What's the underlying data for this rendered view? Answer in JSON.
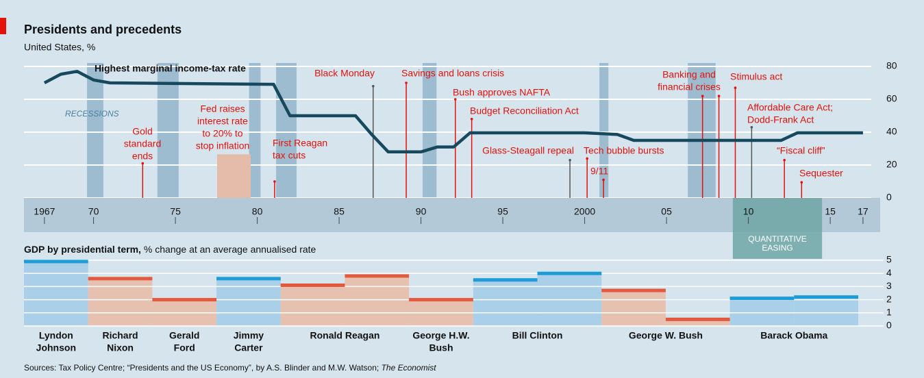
{
  "header": {
    "title": "Presidents and precedents",
    "subtitle": "United States, %"
  },
  "chart_data": [
    {
      "type": "line",
      "series": [
        {
          "name": "Highest marginal income-tax rate",
          "color": "#17495e",
          "x": [
            1967,
            1968,
            1969,
            1970,
            1971,
            1981,
            1982,
            1986,
            1987,
            1988,
            1990,
            1991,
            1992,
            1993,
            2000,
            2001,
            2002,
            2003,
            2012,
            2013,
            2017
          ],
          "values": [
            70,
            75.25,
            77,
            71.75,
            70,
            69.1,
            50,
            50,
            38.5,
            28,
            28,
            31,
            31,
            39.6,
            39.6,
            39.1,
            38.6,
            35,
            35,
            39.6,
            39.6
          ]
        }
      ],
      "xlim": [
        1965.75,
        2018.05
      ],
      "xticks": [
        1967,
        {
          "value": 1970,
          "label": "70"
        },
        {
          "value": 1975,
          "label": "75"
        },
        {
          "value": 1980,
          "label": "80"
        },
        {
          "value": 1985,
          "label": "85"
        },
        {
          "value": 1990,
          "label": "90"
        },
        {
          "value": 1995,
          "label": "95"
        },
        2000,
        {
          "value": 2005,
          "label": "05"
        },
        {
          "value": 2010,
          "label": "10"
        },
        {
          "value": 2015,
          "label": "15"
        },
        {
          "value": 2017,
          "label": "17"
        }
      ],
      "ylim": [
        0,
        80
      ],
      "yticks": [
        0,
        20,
        40,
        60,
        80
      ],
      "grid": true,
      "recessions": {
        "label": "RECESSIONS",
        "color": "#9dbcd0",
        "spans": [
          [
            1969.6,
            1970.6
          ],
          [
            1973.9,
            1975.2
          ],
          [
            1979.5,
            1980.2
          ],
          [
            1981.15,
            1982.4
          ],
          [
            1990.1,
            1990.95
          ],
          [
            2000.9,
            2001.45
          ],
          [
            2006.3,
            2008.0
          ]
        ]
      },
      "quantitative_easing": {
        "lines": [
          "QUANTITATIVE",
          "EASING"
        ],
        "span": [
          2009.05,
          2014.5
        ],
        "color": "#6fa6a6"
      },
      "fed_box": {
        "lines": [
          "Fed raises",
          "interest rate",
          "to 20% to",
          "stop inflation"
        ],
        "span": [
          1977.55,
          1979.6
        ],
        "top": 26.5,
        "color": "#e5bcaa"
      },
      "annotations": [
        {
          "lines": [
            "Gold",
            "standard",
            "ends"
          ],
          "x": [
            1973.0
          ],
          "top": 21,
          "color": "#e3120b"
        },
        {
          "lines": [
            "First Reagan",
            "tax cuts"
          ],
          "x": [
            1981.06
          ],
          "top": 10,
          "color": "#e3120b"
        },
        {
          "lines": [
            "Black Monday"
          ],
          "x": [
            1987.08
          ],
          "top": 68,
          "color": "#555555"
        },
        {
          "lines": [
            "Savings and loans crisis"
          ],
          "x": [
            1989.1
          ],
          "top": 70,
          "color": "#e3120b"
        },
        {
          "lines": [
            "Bush approves NAFTA"
          ],
          "x": [
            1992.1
          ],
          "top": 60,
          "color": "#e3120b"
        },
        {
          "lines": [
            "Budget Reconciliation Act"
          ],
          "x": [
            1993.1
          ],
          "top": 48,
          "color": "#e3120b"
        },
        {
          "lines": [
            "Glass-Steagall repeal"
          ],
          "x": [
            1999.1
          ],
          "top": 23,
          "color": "#555555"
        },
        {
          "lines": [
            "Tech bubble bursts"
          ],
          "x": [
            2000.15
          ],
          "top": 24,
          "color": "#e3120b"
        },
        {
          "lines": [
            "9/11"
          ],
          "x": [
            2001.15
          ],
          "top": 11,
          "color": "#e3120b"
        },
        {
          "lines": [
            "Banking and",
            "financial crises"
          ],
          "x": [
            2007.2,
            2008.2
          ],
          "top": 62,
          "color": "#e3120b"
        },
        {
          "lines": [
            "Stimulus act"
          ],
          "x": [
            2009.2
          ],
          "top": 67,
          "color": "#e3120b"
        },
        {
          "lines": [
            "Affordable Care Act;",
            "Dodd-Frank Act"
          ],
          "x": [
            2010.2
          ],
          "top": 43,
          "color": "#555555"
        },
        {
          "lines": [
            "“Fiscal cliff”"
          ],
          "x": [
            2012.2
          ],
          "top": 23,
          "color": "#e3120b"
        },
        {
          "lines": [
            "Sequester"
          ],
          "x": [
            2013.25
          ],
          "top": 9.5,
          "color": "#e3120b"
        }
      ]
    },
    {
      "type": "step",
      "title": "GDP by presidential term,",
      "subtitle": "% change at an average annualised rate",
      "ylim": [
        0,
        5
      ],
      "yticks": [
        0,
        1,
        2,
        3,
        4,
        5
      ],
      "grid": true,
      "presidents": [
        {
          "name": [
            "Lyndon",
            "Johnson"
          ],
          "color": "#1f9bd7",
          "fill": "#a9d0e8",
          "values": [
            4.9
          ]
        },
        {
          "name": [
            "Richard",
            "Nixon"
          ],
          "color": "#e4583e",
          "fill": "#e6c1b0",
          "values": [
            3.6
          ]
        },
        {
          "name": [
            "Gerald",
            "Ford"
          ],
          "color": "#e4583e",
          "fill": "#e6c1b0",
          "values": [
            2.0
          ]
        },
        {
          "name": [
            "Jimmy",
            "Carter"
          ],
          "color": "#1f9bd7",
          "fill": "#a9d0e8",
          "values": [
            3.6
          ]
        },
        {
          "name": [
            "Ronald Reagan"
          ],
          "color": "#e4583e",
          "fill": "#e6c1b0",
          "values": [
            3.1,
            3.8
          ]
        },
        {
          "name": [
            "George H.W.",
            "Bush"
          ],
          "color": "#e4583e",
          "fill": "#e6c1b0",
          "values": [
            2.0
          ]
        },
        {
          "name": [
            "Bill Clinton"
          ],
          "color": "#1f9bd7",
          "fill": "#a9d0e8",
          "values": [
            3.5,
            4.0
          ]
        },
        {
          "name": [
            "George W. Bush"
          ],
          "color": "#e4583e",
          "fill": "#e6c1b0",
          "values": [
            2.7,
            0.5
          ]
        },
        {
          "name": [
            "Barack Obama"
          ],
          "color": "#1f9bd7",
          "fill": "#a9d0e8",
          "values": [
            2.1,
            2.2
          ]
        }
      ]
    }
  ],
  "source": {
    "text": "Sources: Tax Policy Centre; “Presidents and the US Economy”, by A.S. Blinder and M.W. Watson; ",
    "italic": "The Economist"
  }
}
